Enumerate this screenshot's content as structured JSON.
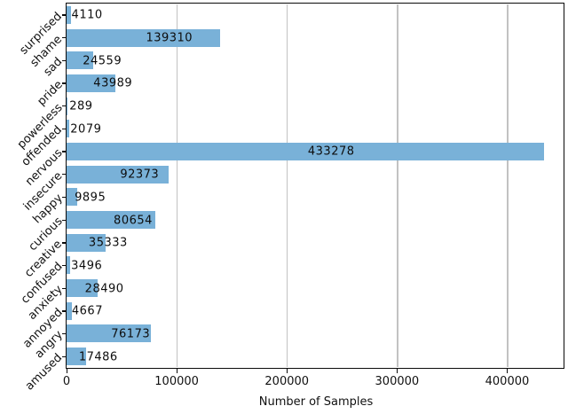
{
  "chart_data": {
    "type": "bar",
    "orientation": "horizontal",
    "title": "",
    "xlabel": "Number of Samples",
    "ylabel": "",
    "categories": [
      "surprised",
      "shame",
      "sad",
      "pride",
      "powerless",
      "offended",
      "nervous",
      "insecure",
      "happy",
      "curious",
      "creative",
      "confused",
      "anxiety",
      "annoyed",
      "angry",
      "amused"
    ],
    "values": [
      4110,
      139310,
      24559,
      43989,
      289,
      2079,
      433278,
      92373,
      9895,
      80654,
      35333,
      3496,
      28490,
      4667,
      76173,
      17486
    ],
    "value_labels": [
      "4110",
      "139310",
      "24559",
      "43989",
      "289",
      "2079",
      "433278",
      "92373",
      "9895",
      "80654",
      "35333",
      "3496",
      "28490",
      "4667",
      "76173",
      "17486"
    ],
    "xlim": [
      0,
      452000
    ],
    "xticks": [
      0,
      100000,
      200000,
      300000,
      400000
    ],
    "xtick_labels": [
      "0",
      "100000",
      "200000",
      "300000",
      "400000"
    ],
    "grid": "vertical-only",
    "legend": "none",
    "bar_color": "#79b1d8",
    "gridline_color": "#c2c2c2",
    "spine_color": "#0a0a0a",
    "value_label_color": "#0d0d0d"
  }
}
